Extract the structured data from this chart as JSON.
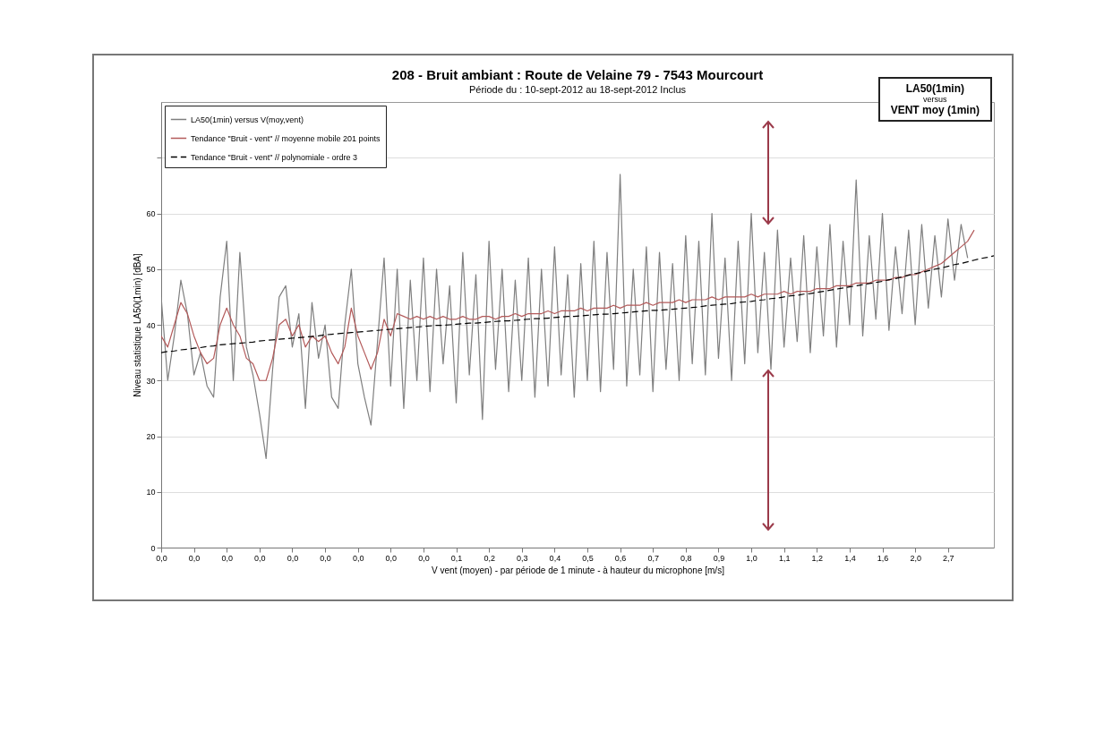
{
  "chart_data": {
    "type": "line",
    "title": "208 - Bruit ambiant : Route de Velaine 79 - 7543 Mourcourt",
    "subtitle": "Période du : 10-sept-2012 au 18-sept-2012 Inclus",
    "xlabel": "V vent (moyen) - par période de 1 minute - à hauteur du microphone [m/s]",
    "ylabel": "Niveau statistique LA50(1min) [dBA]",
    "annotations": [
      "LA50(1min)",
      "versus",
      "VENT moy (1min)"
    ],
    "categories": [
      "0,0",
      null,
      null,
      null,
      null,
      "0,0",
      null,
      null,
      null,
      null,
      "0,0",
      null,
      null,
      null,
      null,
      "0,0",
      null,
      null,
      null,
      null,
      "0,0",
      null,
      null,
      null,
      null,
      "0,0",
      null,
      null,
      null,
      null,
      "0,0",
      null,
      null,
      null,
      null,
      "0,0",
      null,
      null,
      null,
      null,
      "0,0",
      null,
      null,
      null,
      null,
      "0,1",
      null,
      null,
      null,
      null,
      "0,2",
      null,
      null,
      null,
      null,
      "0,3",
      null,
      null,
      null,
      null,
      "0,4",
      null,
      null,
      null,
      null,
      "0,5",
      null,
      null,
      null,
      null,
      "0,6",
      null,
      null,
      null,
      null,
      "0,7",
      null,
      null,
      null,
      null,
      "0,8",
      null,
      null,
      null,
      null,
      "0,9",
      null,
      null,
      null,
      null,
      "1,0",
      null,
      null,
      null,
      null,
      "1,1",
      null,
      null,
      null,
      null,
      "1,2",
      null,
      null,
      null,
      null,
      "1,4",
      null,
      null,
      null,
      null,
      "1,6",
      null,
      null,
      null,
      null,
      "2,0",
      null,
      null,
      null,
      null,
      "2,7",
      null,
      null,
      null,
      null,
      null,
      null,
      null
    ],
    "series": [
      {
        "name": "LA50(1min) versus V(moy,vent)",
        "color": "#7f7f7f",
        "values": [
          45,
          30,
          38,
          48,
          42,
          31,
          35,
          29,
          27,
          45,
          55,
          30,
          53,
          36,
          31,
          24,
          16,
          32,
          45,
          47,
          36,
          42,
          25,
          44,
          34,
          40,
          27,
          25,
          40,
          50,
          33,
          27,
          22,
          37,
          52,
          29,
          50,
          25,
          48,
          30,
          52,
          28,
          50,
          33,
          47,
          26,
          53,
          31,
          49,
          23,
          55,
          32,
          50,
          28,
          48,
          30,
          52,
          27,
          50,
          29,
          54,
          31,
          49,
          27,
          51,
          30,
          55,
          28,
          53,
          32,
          67,
          29,
          50,
          31,
          54,
          28,
          53,
          32,
          51,
          30,
          56,
          33,
          55,
          31,
          60,
          34,
          52,
          30,
          55,
          33,
          60,
          35,
          53,
          32,
          57,
          36,
          52,
          37,
          56,
          35,
          54,
          38,
          58,
          36,
          55,
          40,
          66,
          38,
          56,
          41,
          60,
          39,
          54,
          42,
          57,
          40,
          58,
          43,
          56,
          45,
          59,
          48,
          58,
          52,
          null,
          null,
          null,
          null
        ]
      },
      {
        "name": "Tendance \"Bruit - vent\" // moyenne mobile 201 points",
        "color": "#b35a5a",
        "values": [
          38,
          36,
          40,
          44,
          42,
          38,
          35,
          33,
          34,
          40,
          43,
          40,
          38,
          34,
          33,
          30,
          30,
          34,
          40,
          41,
          38,
          40,
          36,
          38,
          37,
          38,
          35,
          33,
          36,
          43,
          38,
          35,
          32,
          35,
          41,
          38,
          42,
          41.5,
          41,
          41.5,
          41,
          41.5,
          41,
          41.5,
          41,
          41,
          41.5,
          41,
          41,
          41.5,
          41.5,
          41,
          41.5,
          41.5,
          42,
          41.5,
          42,
          42,
          42,
          42.5,
          42,
          42.5,
          42.5,
          42.5,
          43,
          42.5,
          43,
          43,
          43,
          43.5,
          43,
          43.5,
          43.5,
          43.5,
          44,
          43.5,
          44,
          44,
          44,
          44.5,
          44,
          44.5,
          44.5,
          44.5,
          45,
          44.5,
          45,
          45,
          45,
          45,
          45.5,
          45,
          45.5,
          45.5,
          45.5,
          46,
          45.5,
          46,
          46,
          46,
          46.5,
          46.5,
          46.5,
          47,
          47,
          47,
          47.5,
          47.5,
          47.5,
          48,
          48,
          48,
          48.5,
          48.5,
          49,
          49,
          49.5,
          50,
          50.5,
          51,
          52,
          53,
          54,
          55,
          57,
          null,
          null,
          null
        ]
      },
      {
        "name": "Tendance \"Bruit - vent\" // polynomiale - ordre 3",
        "color": "#000000",
        "line_style": "dashed",
        "values": [
          35,
          35.2,
          35.3,
          35.5,
          35.6,
          35.8,
          35.9,
          36.1,
          36.2,
          36.4,
          36.5,
          36.6,
          36.7,
          36.8,
          36.9,
          37.1,
          37.2,
          37.3,
          37.4,
          37.5,
          37.6,
          37.7,
          37.8,
          37.9,
          38.0,
          38.2,
          38.3,
          38.4,
          38.5,
          38.6,
          38.7,
          38.8,
          38.9,
          39.0,
          39.1,
          39.2,
          39.3,
          39.4,
          39.5,
          39.6,
          39.7,
          39.8,
          39.9,
          39.9,
          40.0,
          40.1,
          40.2,
          40.3,
          40.3,
          40.4,
          40.5,
          40.6,
          40.7,
          40.7,
          40.8,
          40.9,
          41.0,
          41.1,
          41.1,
          41.2,
          41.3,
          41.4,
          41.5,
          41.5,
          41.6,
          41.7,
          41.8,
          41.9,
          41.9,
          42.0,
          42.1,
          42.2,
          42.3,
          42.4,
          42.5,
          42.6,
          42.6,
          42.7,
          42.8,
          42.9,
          43.0,
          43.1,
          43.2,
          43.4,
          43.5,
          43.6,
          43.7,
          43.8,
          44.0,
          44.1,
          44.2,
          44.4,
          44.5,
          44.7,
          44.8,
          45.0,
          45.2,
          45.3,
          45.5,
          45.6,
          45.8,
          46.0,
          46.2,
          46.4,
          46.6,
          46.8,
          47.0,
          47.2,
          47.4,
          47.6,
          47.8,
          48.1,
          48.3,
          48.6,
          48.9,
          49.2,
          49.4,
          49.7,
          50.0,
          50.2,
          50.5,
          50.8,
          51.0,
          51.3,
          51.6,
          51.9,
          52.1,
          52.4
        ]
      }
    ],
    "ylim": [
      0,
      80
    ],
    "yticks": [
      0,
      10,
      20,
      30,
      40,
      50,
      60,
      {
        "value": 70,
        "label": null
      }
    ],
    "grid": "y",
    "legend": "top left",
    "line_style": "solid"
  }
}
